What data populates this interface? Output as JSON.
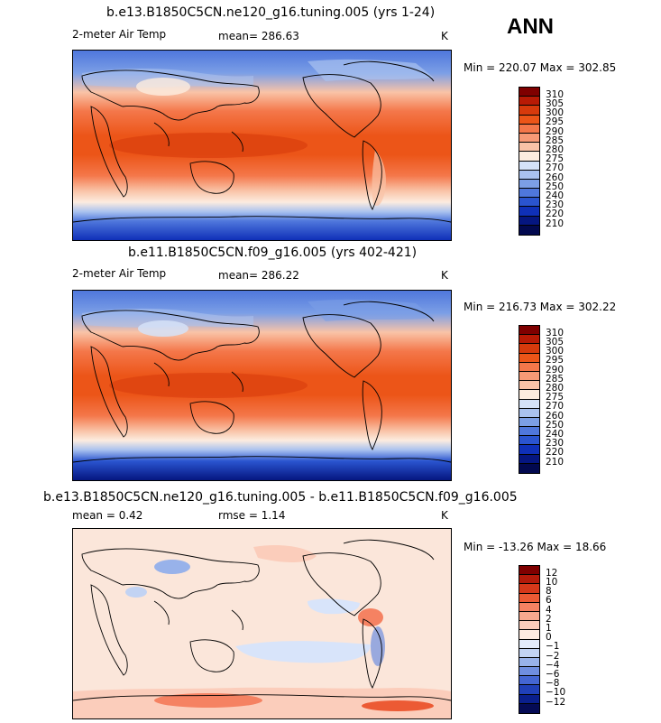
{
  "season": "ANN",
  "chart_data": [
    {
      "type": "heatmap",
      "title": "b.e13.B1850C5CN.ne120_g16.tuning.005 (yrs 1-24)",
      "left_label": "2-meter Air Temp",
      "center_label": "mean= 286.63",
      "right_label": "K",
      "stats": "Min = 220.07 Max = 302.85",
      "mean": 286.63,
      "min": 220.07,
      "max": 302.85,
      "units": "K",
      "colorbar_levels": [
        "310",
        "305",
        "300",
        "295",
        "290",
        "285",
        "280",
        "275",
        "270",
        "260",
        "250",
        "240",
        "230",
        "220",
        "210"
      ]
    },
    {
      "type": "heatmap",
      "title": "b.e11.B1850C5CN.f09_g16.005 (yrs 402-421)",
      "left_label": "2-meter Air Temp",
      "center_label": "mean= 286.22",
      "right_label": "K",
      "stats": "Min = 216.73 Max = 302.22",
      "mean": 286.22,
      "min": 216.73,
      "max": 302.22,
      "units": "K",
      "colorbar_levels": [
        "310",
        "305",
        "300",
        "295",
        "290",
        "285",
        "280",
        "275",
        "270",
        "260",
        "250",
        "240",
        "230",
        "220",
        "210"
      ]
    },
    {
      "type": "heatmap",
      "title": "b.e13.B1850C5CN.ne120_g16.tuning.005 - b.e11.B1850C5CN.f09_g16.005",
      "left_label": "mean = 0.42",
      "center_label": "rmse = 1.14",
      "right_label": "K",
      "stats": "Min = -13.26 Max = 18.66",
      "mean": 0.42,
      "rmse": 1.14,
      "min": -13.26,
      "max": 18.66,
      "units": "K",
      "colorbar_levels": [
        "12",
        "10",
        "8",
        "6",
        "4",
        "2",
        "1",
        "0",
        "−1",
        "−2",
        "−4",
        "−6",
        "−8",
        "−10",
        "−12"
      ]
    }
  ],
  "colors": {
    "abs_scale": [
      "#7f0000",
      "#b81a05",
      "#d73a0c",
      "#ec5518",
      "#f4774a",
      "#f79a76",
      "#f9c3a7",
      "#fcecdf",
      "#d5e2f8",
      "#aac2ef",
      "#7c9fe6",
      "#4f77dc",
      "#2a54cf",
      "#0f30b8",
      "#051680",
      "#02094f"
    ],
    "diff_scale": [
      "#7f0000",
      "#b31a0a",
      "#d6381a",
      "#ec5a34",
      "#f58262",
      "#f8a98e",
      "#fbcdbb",
      "#fdebe1",
      "#e4ecfb",
      "#c2d3f3",
      "#98b2ea",
      "#6f8ee0",
      "#4466d3",
      "#2040b8",
      "#0a1f8c",
      "#050b55"
    ]
  }
}
